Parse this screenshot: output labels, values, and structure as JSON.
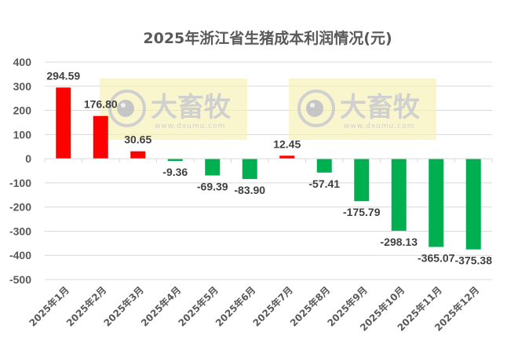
{
  "chart_data": {
    "type": "bar",
    "title": "2025年浙江省生猪成本利润情况(元)",
    "xlabel": "",
    "ylabel": "",
    "categories": [
      "2025年1月",
      "2025年2月",
      "2025年3月",
      "2025年4月",
      "2025年5月",
      "2025年6月",
      "2025年7月",
      "2025年8月",
      "2025年9月",
      "2025年10月",
      "2025年11月",
      "2025年12月"
    ],
    "values": [
      294.59,
      176.8,
      30.65,
      -9.36,
      -69.39,
      -83.9,
      12.45,
      -57.41,
      -175.79,
      -298.13,
      -365.07,
      -375.38
    ],
    "value_labels": [
      "294.59",
      "176.80",
      "30.65",
      "-9.36",
      "-69.39",
      "-83.90",
      "12.45",
      "-57.41",
      "-175.79",
      "-298.13",
      "-365.07",
      "-375.38"
    ],
    "ylim": [
      -500,
      400
    ],
    "yticks": [
      400,
      300,
      200,
      100,
      0,
      -100,
      -200,
      -300,
      -400,
      -500
    ],
    "ytick_labels": [
      "400",
      "300",
      "200",
      "100",
      "0",
      "-100",
      "-200",
      "-300",
      "-400",
      "-500"
    ],
    "grid": true,
    "legend": "none",
    "colors": {
      "positive": "#ff0000",
      "negative": "#00b050",
      "grid": "#d9d9d9",
      "text": "#595959"
    }
  },
  "watermark": {
    "brand": "大畜牧",
    "url": "www.dxumu.com",
    "background": "#f5f0b0"
  }
}
